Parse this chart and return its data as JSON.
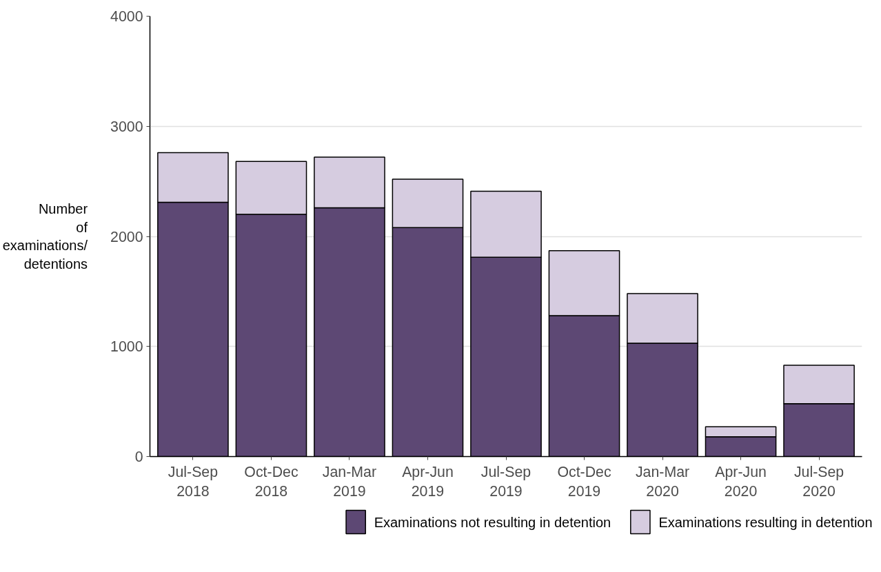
{
  "chart_data": {
    "type": "bar",
    "stacked": true,
    "ylabel": "Number\nof\nexaminations/\ndetentions",
    "categories": [
      "Jul-Sep 2018",
      "Oct-Dec 2018",
      "Jan-Mar 2019",
      "Apr-Jun 2019",
      "Jul-Sep 2019",
      "Oct-Dec 2019",
      "Jan-Mar 2020",
      "Apr-Jun 2020",
      "Jul-Sep 2020"
    ],
    "series": [
      {
        "name": "Examinations not resulting in detention",
        "color": "#5d4874",
        "values": [
          2310,
          2200,
          2260,
          2080,
          1810,
          1280,
          1030,
          180,
          480
        ]
      },
      {
        "name": "Examinations resulting in detention",
        "color": "#d6cce0",
        "values": [
          450,
          480,
          460,
          440,
          600,
          590,
          450,
          90,
          350
        ]
      }
    ],
    "ylim": [
      0,
      4000
    ],
    "yticks": [
      0,
      1000,
      2000,
      3000,
      4000
    ],
    "grid": "y",
    "legend": "bottom"
  }
}
